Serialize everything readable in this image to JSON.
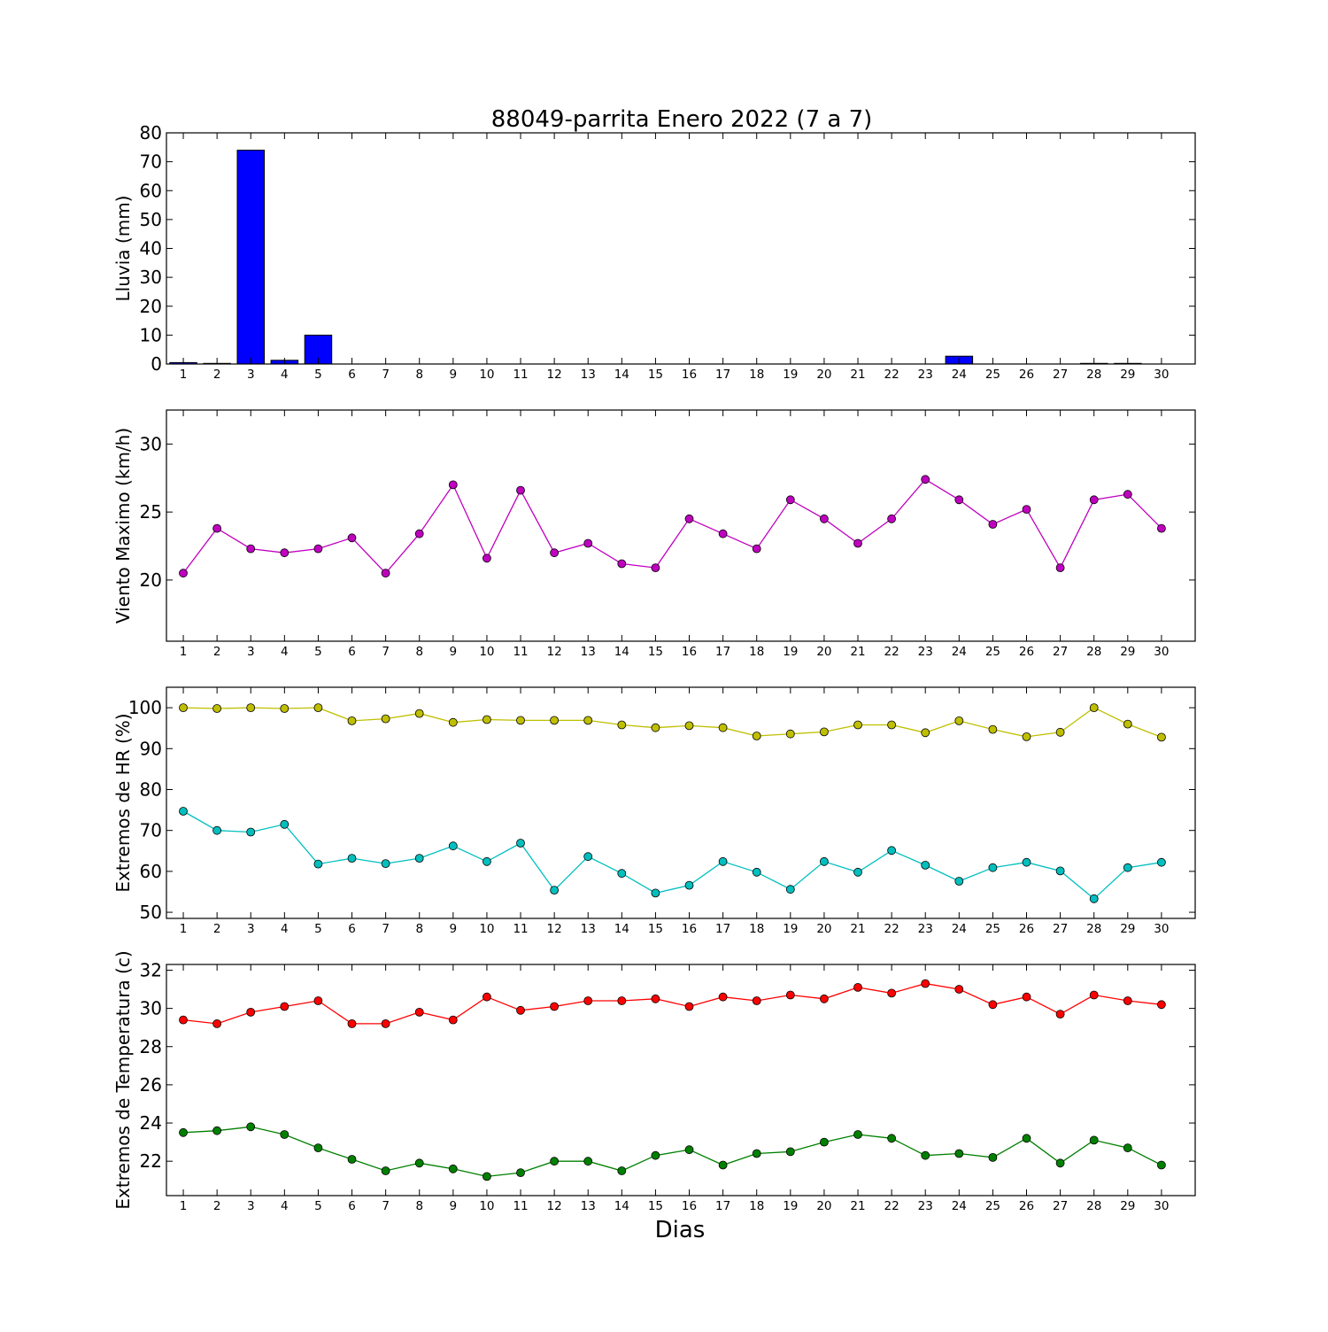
{
  "title": "88049-parrita Enero 2022  (7 a 7)",
  "xlabel": "Dias",
  "chart_data": [
    {
      "type": "bar",
      "ylabel": "Lluvia (mm)",
      "categories": [
        "1",
        "2",
        "3",
        "4",
        "5",
        "6",
        "7",
        "8",
        "9",
        "10",
        "11",
        "12",
        "13",
        "14",
        "15",
        "16",
        "17",
        "18",
        "19",
        "20",
        "21",
        "22",
        "23",
        "24",
        "25",
        "26",
        "27",
        "28",
        "29",
        "30"
      ],
      "series": [
        {
          "color": "#0000ff",
          "values": [
            0.5,
            0.2,
            74.0,
            1.3,
            10.0,
            0,
            0,
            0,
            0,
            0,
            0,
            0,
            0,
            0,
            0,
            0,
            0,
            0,
            0,
            0,
            0,
            0,
            0,
            2.7,
            0,
            0,
            0,
            0.2,
            0.2,
            0
          ]
        }
      ],
      "ylim": [
        0,
        80
      ],
      "yticks": [
        0,
        10,
        20,
        30,
        40,
        50,
        60,
        70,
        80
      ]
    },
    {
      "type": "line",
      "ylabel": "Viento Maximo (km/h)",
      "categories": [
        "1",
        "2",
        "3",
        "4",
        "5",
        "6",
        "7",
        "8",
        "9",
        "10",
        "11",
        "12",
        "13",
        "14",
        "15",
        "16",
        "17",
        "18",
        "19",
        "20",
        "21",
        "22",
        "23",
        "24",
        "25",
        "26",
        "27",
        "28",
        "29",
        "30"
      ],
      "series": [
        {
          "color": "#bf00bf",
          "values": [
            20.5,
            23.8,
            22.3,
            22.0,
            22.3,
            23.1,
            20.5,
            23.4,
            27.0,
            21.6,
            26.6,
            22.0,
            22.7,
            21.2,
            20.9,
            24.5,
            23.4,
            22.3,
            25.9,
            24.5,
            22.7,
            24.5,
            27.4,
            25.9,
            24.1,
            25.2,
            20.9,
            25.9,
            26.3,
            23.8
          ]
        }
      ],
      "ylim": [
        15.5,
        32.5
      ],
      "yticks": [
        20,
        25,
        30
      ]
    },
    {
      "type": "line",
      "ylabel": "Extremos de HR (%)",
      "categories": [
        "1",
        "2",
        "3",
        "4",
        "5",
        "6",
        "7",
        "8",
        "9",
        "10",
        "11",
        "12",
        "13",
        "14",
        "15",
        "16",
        "17",
        "18",
        "19",
        "20",
        "21",
        "22",
        "23",
        "24",
        "25",
        "26",
        "27",
        "28",
        "29",
        "30"
      ],
      "series": [
        {
          "color": "#bfbf00",
          "values": [
            100,
            99.8,
            100,
            99.8,
            100,
            96.8,
            97.3,
            98.6,
            96.4,
            97.1,
            96.9,
            96.9,
            96.9,
            95.8,
            95.1,
            95.6,
            95.1,
            93.1,
            93.6,
            94.1,
            95.8,
            95.8,
            93.9,
            96.8,
            94.7,
            92.9,
            94.0,
            100,
            96.0,
            92.8
          ]
        },
        {
          "color": "#00bfbf",
          "values": [
            74.7,
            70.0,
            69.6,
            71.5,
            61.8,
            63.2,
            61.9,
            63.2,
            66.2,
            62.4,
            66.9,
            55.4,
            63.6,
            59.5,
            54.7,
            56.6,
            62.4,
            59.8,
            55.6,
            62.4,
            59.8,
            65.1,
            61.5,
            57.6,
            60.9,
            62.2,
            60.1,
            53.3,
            60.9,
            62.2
          ]
        }
      ],
      "ylim": [
        48.5,
        105
      ],
      "yticks": [
        50,
        60,
        70,
        80,
        90,
        100
      ]
    },
    {
      "type": "line",
      "ylabel": "Extremos de Temperatura (c)",
      "categories": [
        "1",
        "2",
        "3",
        "4",
        "5",
        "6",
        "7",
        "8",
        "9",
        "10",
        "11",
        "12",
        "13",
        "14",
        "15",
        "16",
        "17",
        "18",
        "19",
        "20",
        "21",
        "22",
        "23",
        "24",
        "25",
        "26",
        "27",
        "28",
        "29",
        "30"
      ],
      "series": [
        {
          "color": "#ff0000",
          "values": [
            29.4,
            29.2,
            29.8,
            30.1,
            30.4,
            29.2,
            29.2,
            29.8,
            29.4,
            30.6,
            29.9,
            30.1,
            30.4,
            30.4,
            30.5,
            30.1,
            30.6,
            30.4,
            30.7,
            30.5,
            31.1,
            30.8,
            31.3,
            31.0,
            30.2,
            30.6,
            29.7,
            30.7,
            30.4,
            30.2
          ]
        },
        {
          "color": "#008000",
          "values": [
            23.5,
            23.6,
            23.8,
            23.4,
            22.7,
            22.1,
            21.5,
            21.9,
            21.6,
            21.2,
            21.4,
            22.0,
            22.0,
            21.5,
            22.3,
            22.6,
            21.8,
            22.4,
            22.5,
            23.0,
            23.4,
            23.2,
            22.3,
            22.4,
            22.2,
            23.2,
            21.9,
            23.1,
            22.7,
            21.8
          ]
        }
      ],
      "ylim": [
        20.2,
        32.3
      ],
      "yticks": [
        22,
        24,
        26,
        28,
        30,
        32
      ]
    }
  ]
}
